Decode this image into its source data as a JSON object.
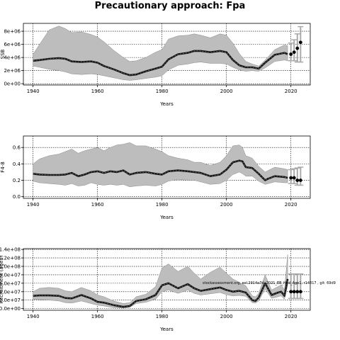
{
  "figure": {
    "title": "Precautionary approach: Fpa"
  },
  "chart_data": [
    {
      "type": "line",
      "id": "ssb",
      "title": "",
      "xlabel": "Years",
      "ylabel": "SSB",
      "xlim": [
        1937,
        2026
      ],
      "ylim": [
        -200000,
        9200000
      ],
      "xticks": [
        1940,
        1960,
        1980,
        2000,
        2020
      ],
      "yticks": [
        0,
        2000000,
        4000000,
        6000000,
        8000000
      ],
      "ytick_labels": [
        "0e+00",
        "2e+06",
        "4e+06",
        "6e+06",
        "8e+06"
      ],
      "grid": true,
      "x": [
        1940,
        1942,
        1945,
        1948,
        1950,
        1952,
        1955,
        1958,
        1960,
        1962,
        1965,
        1968,
        1970,
        1972,
        1975,
        1978,
        1980,
        1982,
        1985,
        1988,
        1990,
        1992,
        1995,
        1998,
        2000,
        2002,
        2004,
        2006,
        2008,
        2010,
        2012,
        2015,
        2018,
        2019
      ],
      "mean": [
        3500000,
        3600000,
        3800000,
        3900000,
        3800000,
        3400000,
        3300000,
        3400000,
        3200000,
        2700000,
        2200000,
        1600000,
        1300000,
        1400000,
        1900000,
        2300000,
        2600000,
        3700000,
        4500000,
        4700000,
        5000000,
        5000000,
        4800000,
        5000000,
        4800000,
        3600000,
        2800000,
        2500000,
        2500000,
        2300000,
        3200000,
        4400000,
        4700000,
        4500000
      ],
      "lower": [
        2700000,
        2500000,
        2200000,
        2000000,
        1800000,
        1500000,
        1400000,
        1500000,
        1400000,
        1200000,
        900000,
        600000,
        500000,
        600000,
        800000,
        1000000,
        1200000,
        2100000,
        2800000,
        3000000,
        3200000,
        3300000,
        3100000,
        3100000,
        3000000,
        2500000,
        2100000,
        1900000,
        2000000,
        1900000,
        2400000,
        3400000,
        3600000,
        3500000
      ],
      "upper": [
        4500000,
        6000000,
        8200000,
        8800000,
        8400000,
        7800000,
        7900000,
        7500000,
        7100000,
        6400000,
        5100000,
        4000000,
        3400000,
        3500000,
        4000000,
        4800000,
        5200000,
        6800000,
        7300000,
        7400000,
        7600000,
        7400000,
        7000000,
        7600000,
        7400000,
        6200000,
        4600000,
        3400000,
        3000000,
        2700000,
        3600000,
        5200000,
        5900000,
        5800000
      ],
      "forecast_x": [
        2020,
        2021,
        2022,
        2023
      ],
      "forecast_mean": [
        4500000,
        4800000,
        5400000,
        6300000
      ],
      "forecast_lower": [
        3500000,
        3500000,
        3300000,
        3300000
      ],
      "forecast_upper": [
        6200000,
        6700000,
        7600000,
        8700000
      ]
    },
    {
      "type": "line",
      "id": "fbar",
      "title": "",
      "xlabel": "Years",
      "ylabel": "F4-8",
      "xlim": [
        1937,
        2026
      ],
      "ylim": [
        -0.02,
        0.74
      ],
      "xticks": [
        1940,
        1960,
        1980,
        2000,
        2020
      ],
      "yticks": [
        0.0,
        0.2,
        0.4,
        0.6
      ],
      "ytick_labels": [
        "0.0",
        "0.2",
        "0.4",
        "0.6"
      ],
      "grid": true,
      "x": [
        1940,
        1942,
        1945,
        1948,
        1950,
        1952,
        1954,
        1956,
        1958,
        1960,
        1962,
        1964,
        1966,
        1968,
        1970,
        1972,
        1975,
        1978,
        1980,
        1982,
        1985,
        1988,
        1990,
        1992,
        1995,
        1998,
        2000,
        2002,
        2004,
        2005,
        2006,
        2008,
        2010,
        2012,
        2013,
        2015,
        2018,
        2019
      ],
      "mean": [
        0.28,
        0.27,
        0.265,
        0.265,
        0.27,
        0.29,
        0.25,
        0.27,
        0.3,
        0.31,
        0.29,
        0.31,
        0.3,
        0.32,
        0.27,
        0.29,
        0.3,
        0.28,
        0.27,
        0.31,
        0.32,
        0.31,
        0.3,
        0.29,
        0.25,
        0.27,
        0.33,
        0.42,
        0.44,
        0.43,
        0.36,
        0.35,
        0.28,
        0.2,
        0.22,
        0.25,
        0.24,
        0.23
      ],
      "lower": [
        0.19,
        0.17,
        0.16,
        0.15,
        0.14,
        0.16,
        0.13,
        0.14,
        0.17,
        0.15,
        0.14,
        0.15,
        0.14,
        0.15,
        0.12,
        0.13,
        0.14,
        0.13,
        0.15,
        0.19,
        0.21,
        0.2,
        0.2,
        0.18,
        0.15,
        0.16,
        0.2,
        0.27,
        0.3,
        0.28,
        0.25,
        0.25,
        0.19,
        0.15,
        0.16,
        0.18,
        0.17,
        0.17
      ],
      "upper": [
        0.4,
        0.46,
        0.5,
        0.52,
        0.55,
        0.58,
        0.53,
        0.56,
        0.58,
        0.6,
        0.56,
        0.6,
        0.63,
        0.64,
        0.66,
        0.62,
        0.62,
        0.58,
        0.55,
        0.5,
        0.47,
        0.45,
        0.42,
        0.42,
        0.38,
        0.42,
        0.5,
        0.62,
        0.63,
        0.6,
        0.5,
        0.47,
        0.37,
        0.3,
        0.32,
        0.36,
        0.34,
        0.33
      ],
      "forecast_x": [
        2020,
        2021,
        2022,
        2023
      ],
      "forecast_mean": [
        0.23,
        0.23,
        0.2,
        0.2
      ],
      "forecast_lower": [
        0.16,
        0.16,
        0.14,
        0.14
      ],
      "forecast_upper": [
        0.33,
        0.34,
        0.35,
        0.36
      ]
    },
    {
      "type": "line",
      "id": "recruitment",
      "title": "",
      "xlabel": "Years",
      "ylabel": "Recruitment (age1)",
      "xlim": [
        1937,
        2026
      ],
      "ylim": [
        -4000000,
        142000000
      ],
      "xticks": [
        1940,
        1960,
        1980,
        2000,
        2020
      ],
      "yticks": [
        0,
        20000000,
        40000000,
        60000000,
        80000000,
        100000000,
        120000000,
        140000000
      ],
      "ytick_labels": [
        "0.0e+00",
        "2.0e+07",
        "4.0e+07",
        "6.0e+07",
        "8.0e+07",
        "1.0e+08",
        "1.2e+08",
        "1.4e+08"
      ],
      "grid": true,
      "x": [
        1940,
        1942,
        1945,
        1948,
        1950,
        1952,
        1955,
        1958,
        1960,
        1962,
        1965,
        1968,
        1970,
        1972,
        1975,
        1978,
        1980,
        1982,
        1985,
        1988,
        1990,
        1992,
        1995,
        1998,
        2000,
        2002,
        2004,
        2006,
        2008,
        2009,
        2010,
        2012,
        2014,
        2016,
        2017,
        2018,
        2019
      ],
      "mean": [
        30000000,
        31000000,
        31000000,
        30000000,
        25000000,
        24000000,
        32000000,
        24000000,
        16000000,
        14000000,
        8000000,
        4000000,
        6000000,
        18000000,
        22000000,
        32000000,
        55000000,
        60000000,
        48000000,
        58000000,
        48000000,
        42000000,
        46000000,
        50000000,
        44000000,
        40000000,
        42000000,
        38000000,
        20000000,
        18000000,
        26000000,
        60000000,
        32000000,
        38000000,
        40000000,
        30000000,
        70000000
      ],
      "lower": [
        22000000,
        21000000,
        20000000,
        18000000,
        14000000,
        13000000,
        18000000,
        12000000,
        8000000,
        6000000,
        2000000,
        1000000,
        3000000,
        12000000,
        15000000,
        22000000,
        40000000,
        44000000,
        36000000,
        44000000,
        36000000,
        32000000,
        35000000,
        38000000,
        33000000,
        30000000,
        31000000,
        29000000,
        14000000,
        13000000,
        18000000,
        46000000,
        24000000,
        28000000,
        30000000,
        22000000,
        55000000
      ],
      "upper": [
        40000000,
        48000000,
        50000000,
        48000000,
        42000000,
        40000000,
        50000000,
        42000000,
        32000000,
        28000000,
        18000000,
        12000000,
        14000000,
        28000000,
        34000000,
        52000000,
        96000000,
        106000000,
        88000000,
        100000000,
        84000000,
        70000000,
        86000000,
        98000000,
        84000000,
        70000000,
        62000000,
        54000000,
        30000000,
        28000000,
        36000000,
        80000000,
        44000000,
        52000000,
        56000000,
        44000000,
        128000000
      ],
      "forecast_x": [
        2020,
        2021,
        2022,
        2023
      ],
      "forecast_mean": [
        40000000,
        40000000,
        40000000,
        40000000
      ],
      "forecast_lower": [
        24000000,
        24000000,
        24000000,
        24000000
      ],
      "forecast_upper": [
        82000000,
        82000000,
        82000000,
        82000000
      ],
      "annotation": "stockassessment.org, sol.2914a7d, 2021_EB_Had_Age1, r14817 , git: 69d9"
    }
  ]
}
